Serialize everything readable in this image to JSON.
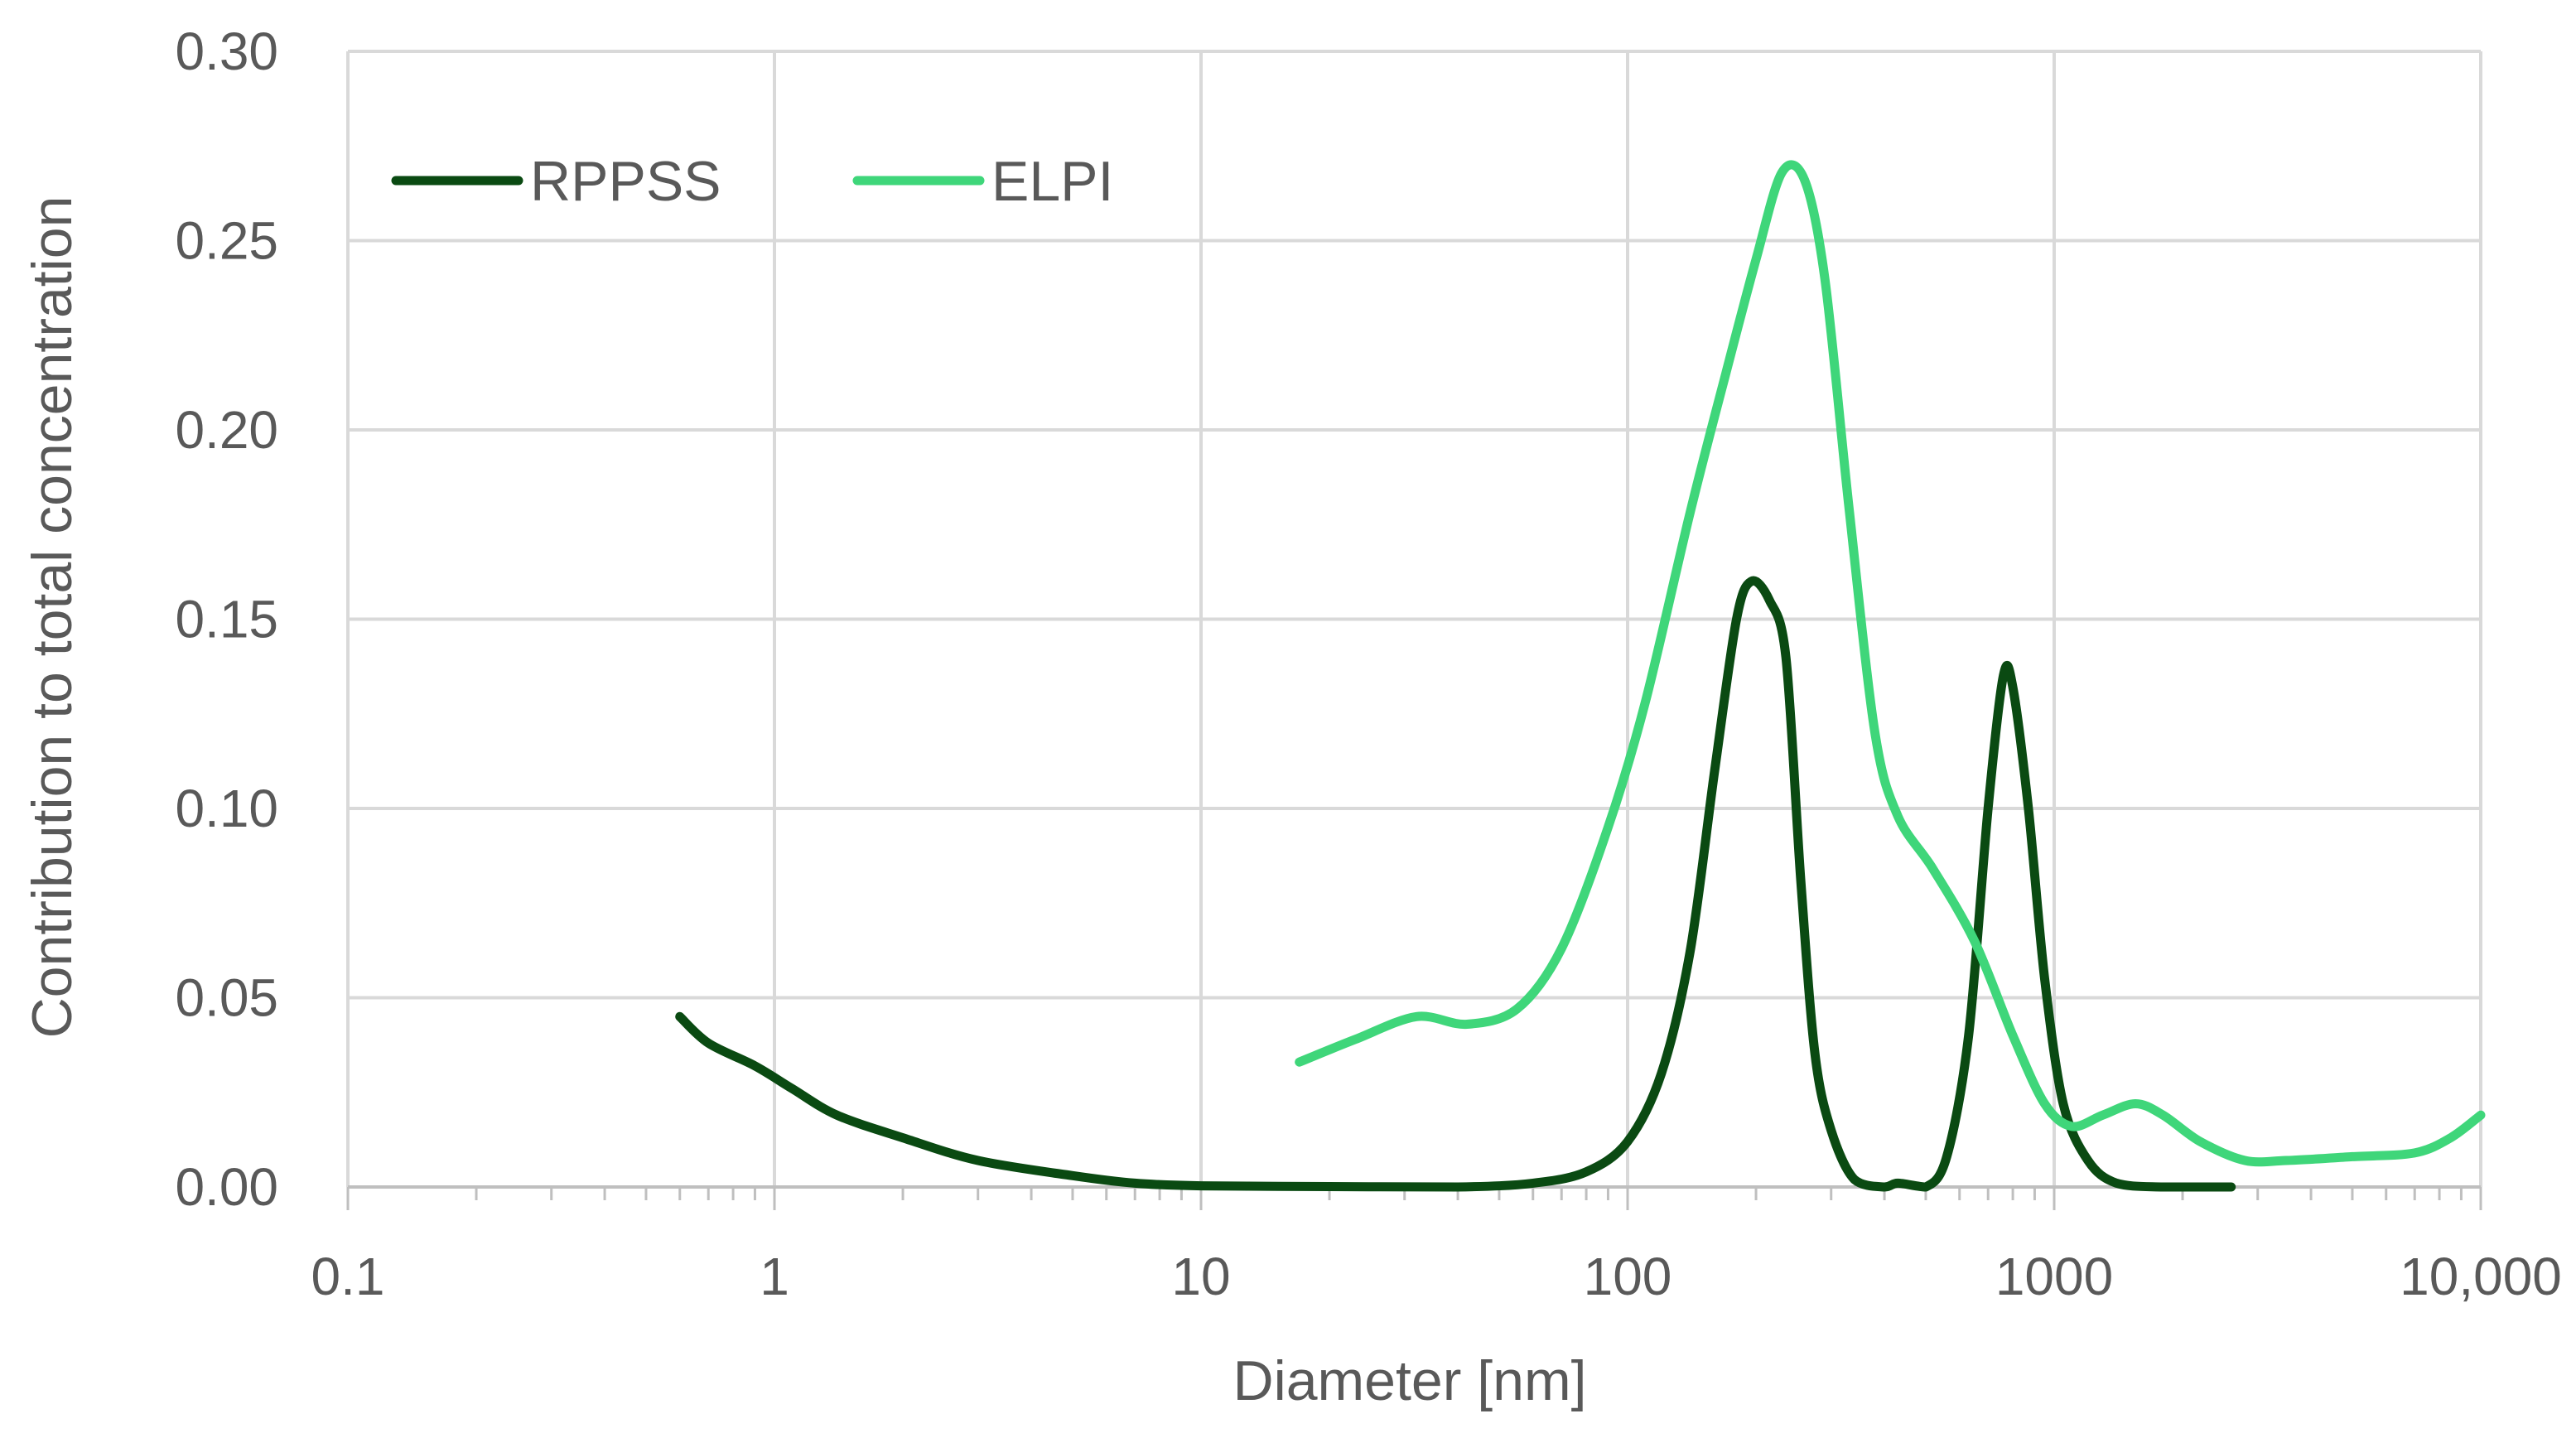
{
  "chart_data": {
    "type": "line",
    "title": "",
    "xlabel": "Diameter [nm]",
    "ylabel": "Contribution to total concentration",
    "x_scale": "log",
    "xlim": [
      0.1,
      10000
    ],
    "ylim": [
      0,
      0.3
    ],
    "x_ticks": [
      0.1,
      1,
      10,
      100,
      1000,
      10000
    ],
    "x_tick_labels": [
      "0.1",
      "1",
      "10",
      "100",
      "1000",
      "10,000"
    ],
    "y_ticks": [
      0,
      0.05,
      0.1,
      0.15,
      0.2,
      0.25,
      0.3
    ],
    "y_tick_labels": [
      "0.00",
      "0.05",
      "0.10",
      "0.15",
      "0.20",
      "0.25",
      "0.30"
    ],
    "grid": true,
    "legend_position": "top-left",
    "series": [
      {
        "name": "RPPSS",
        "color": "#0a4a12",
        "points": [
          [
            0.6,
            0.045
          ],
          [
            0.7,
            0.038
          ],
          [
            0.9,
            0.032
          ],
          [
            1.1,
            0.026
          ],
          [
            1.4,
            0.019
          ],
          [
            2,
            0.013
          ],
          [
            3,
            0.007
          ],
          [
            5,
            0.003
          ],
          [
            7,
            0.001
          ],
          [
            10,
            0.0003
          ],
          [
            20,
            0.0001
          ],
          [
            40,
            0.0
          ],
          [
            60,
            0.001
          ],
          [
            80,
            0.004
          ],
          [
            100,
            0.012
          ],
          [
            120,
            0.03
          ],
          [
            140,
            0.062
          ],
          [
            160,
            0.11
          ],
          [
            180,
            0.15
          ],
          [
            195,
            0.16
          ],
          [
            215,
            0.155
          ],
          [
            235,
            0.14
          ],
          [
            255,
            0.08
          ],
          [
            275,
            0.035
          ],
          [
            300,
            0.015
          ],
          [
            340,
            0.002
          ],
          [
            400,
            0.0
          ],
          [
            430,
            0.001
          ],
          [
            500,
            0.0
          ],
          [
            560,
            0.008
          ],
          [
            630,
            0.04
          ],
          [
            700,
            0.1
          ],
          [
            760,
            0.135
          ],
          [
            800,
            0.132
          ],
          [
            870,
            0.1
          ],
          [
            950,
            0.055
          ],
          [
            1050,
            0.022
          ],
          [
            1200,
            0.007
          ],
          [
            1400,
            0.001
          ],
          [
            1800,
            0.0
          ],
          [
            2600,
            0.0
          ]
        ]
      },
      {
        "name": "ELPI",
        "color": "#3fd67a",
        "points": [
          [
            17,
            0.033
          ],
          [
            23,
            0.039
          ],
          [
            32,
            0.045
          ],
          [
            42,
            0.043
          ],
          [
            55,
            0.047
          ],
          [
            70,
            0.063
          ],
          [
            90,
            0.095
          ],
          [
            110,
            0.128
          ],
          [
            140,
            0.178
          ],
          [
            170,
            0.215
          ],
          [
            200,
            0.245
          ],
          [
            230,
            0.268
          ],
          [
            260,
            0.266
          ],
          [
            290,
            0.24
          ],
          [
            330,
            0.18
          ],
          [
            380,
            0.12
          ],
          [
            430,
            0.098
          ],
          [
            520,
            0.084
          ],
          [
            650,
            0.065
          ],
          [
            800,
            0.04
          ],
          [
            950,
            0.022
          ],
          [
            1100,
            0.016
          ],
          [
            1300,
            0.019
          ],
          [
            1550,
            0.022
          ],
          [
            1800,
            0.019
          ],
          [
            2200,
            0.012
          ],
          [
            2800,
            0.007
          ],
          [
            3500,
            0.007
          ],
          [
            5000,
            0.008
          ],
          [
            7000,
            0.009
          ],
          [
            8500,
            0.013
          ],
          [
            10000,
            0.019
          ]
        ]
      }
    ]
  }
}
